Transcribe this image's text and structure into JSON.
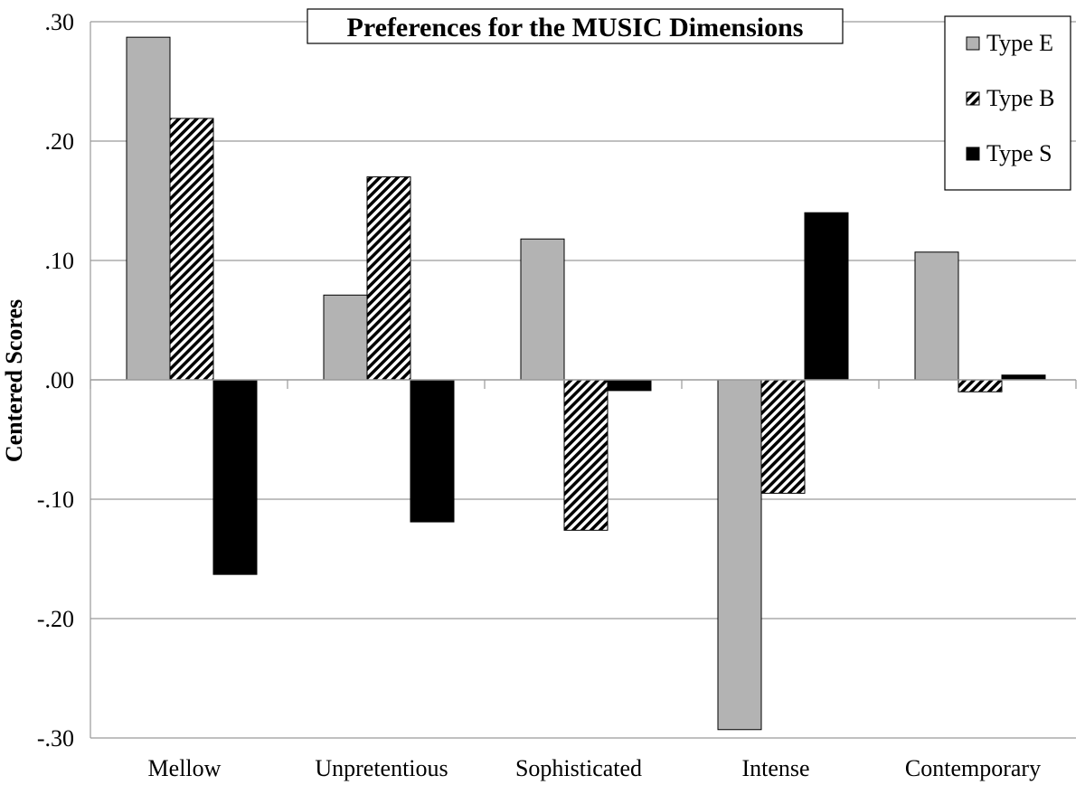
{
  "chart_data": {
    "type": "bar",
    "title": "Preferences for the MUSIC Dimensions",
    "xlabel": "",
    "ylabel": "Centered Scores",
    "ylim": [
      -0.3,
      0.3
    ],
    "yticks": [
      0.3,
      0.2,
      0.1,
      0.0,
      -0.1,
      -0.2,
      -0.3
    ],
    "ytick_labels": [
      ".30",
      ".20",
      ".10",
      ".00",
      "-.10",
      "-.20",
      "-.30"
    ],
    "categories": [
      "Mellow",
      "Unpretentious",
      "Sophisticated",
      "Intense",
      "Contemporary"
    ],
    "series": [
      {
        "name": "Type E",
        "fill": "#b3b3b3",
        "pattern": "solid",
        "values": [
          0.287,
          0.071,
          0.118,
          -0.293,
          0.107
        ]
      },
      {
        "name": "Type B",
        "fill": "#000000",
        "pattern": "diagonal-hatch",
        "values": [
          0.219,
          0.17,
          -0.126,
          -0.095,
          -0.01
        ]
      },
      {
        "name": "Type S",
        "fill": "#000000",
        "pattern": "solid",
        "values": [
          -0.163,
          -0.119,
          -0.009,
          0.14,
          0.004
        ]
      }
    ],
    "grid": true,
    "legend_position": "top-right"
  }
}
